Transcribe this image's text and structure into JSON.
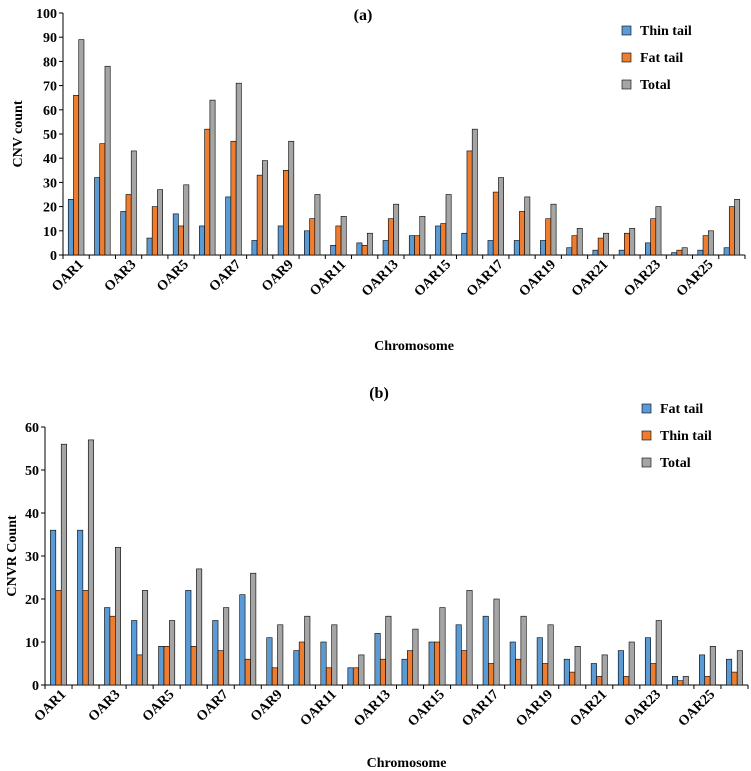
{
  "chart_data": [
    {
      "type": "bar",
      "title": "(a)",
      "xlabel": "Chromosome",
      "ylabel": "CNV  count",
      "ylim": [
        0,
        100
      ],
      "yticks": [
        "0",
        "10",
        "20",
        "30",
        "40",
        "50",
        "60",
        "70",
        "80",
        "90",
        "100"
      ],
      "categories": [
        "OAR1",
        "OAR2",
        "OAR3",
        "OAR4",
        "OAR5",
        "OAR6",
        "OAR7",
        "OAR8",
        "OAR9",
        "OAR10",
        "OAR11",
        "OAR12",
        "OAR13",
        "OAR14",
        "OAR15",
        "OAR16",
        "OAR17",
        "OAR18",
        "OAR19",
        "OAR20",
        "OAR21",
        "OAR22",
        "OAR23",
        "OAR24",
        "OAR25",
        "OAR26"
      ],
      "category_labels_shown": [
        "OAR1",
        "",
        "OAR3",
        "",
        "OAR5",
        "",
        "OAR7",
        "",
        "OAR9",
        "",
        "OAR11",
        "",
        "OAR13",
        "",
        "OAR15",
        "",
        "OAR17",
        "",
        "OAR19",
        "",
        "OAR21",
        "",
        "OAR23",
        "",
        "OAR25",
        ""
      ],
      "legend_position": "top-right",
      "series": [
        {
          "name": "Thin tail",
          "color": "#5b9bd5",
          "values": [
            23,
            32,
            18,
            7,
            17,
            12,
            24,
            6,
            12,
            10,
            4,
            5,
            6,
            8,
            12,
            9,
            6,
            6,
            6,
            3,
            2,
            2,
            5,
            1,
            2,
            3
          ]
        },
        {
          "name": "Fat tail",
          "color": "#ed7d31",
          "values": [
            66,
            46,
            25,
            20,
            12,
            52,
            47,
            33,
            35,
            15,
            12,
            4,
            15,
            8,
            13,
            43,
            26,
            18,
            15,
            8,
            7,
            9,
            15,
            2,
            8,
            20
          ]
        },
        {
          "name": "Total",
          "color": "#a5a5a5",
          "values": [
            89,
            78,
            43,
            27,
            29,
            64,
            71,
            39,
            47,
            25,
            16,
            9,
            21,
            16,
            25,
            52,
            32,
            24,
            21,
            11,
            9,
            11,
            20,
            3,
            10,
            23
          ]
        }
      ]
    },
    {
      "type": "bar",
      "title": "(b)",
      "xlabel": "Chromosome",
      "ylabel": "CNVR  Count",
      "ylim": [
        0,
        60
      ],
      "yticks": [
        "0",
        "10",
        "20",
        "30",
        "40",
        "50",
        "60"
      ],
      "categories": [
        "OAR1",
        "OAR2",
        "OAR3",
        "OAR4",
        "OAR5",
        "OAR6",
        "OAR7",
        "OAR8",
        "OAR9",
        "OAR10",
        "OAR11",
        "OAR12",
        "OAR13",
        "OAR14",
        "OAR15",
        "OAR16",
        "OAR17",
        "OAR18",
        "OAR19",
        "OAR20",
        "OAR21",
        "OAR22",
        "OAR23",
        "OAR24",
        "OAR25",
        "OAR26"
      ],
      "category_labels_shown": [
        "OAR1",
        "",
        "OAR3",
        "",
        "OAR5",
        "",
        "OAR7",
        "",
        "OAR9",
        "",
        "OAR11",
        "",
        "OAR13",
        "",
        "OAR15",
        "",
        "OAR17",
        "",
        "OAR19",
        "",
        "OAR21",
        "",
        "OAR23",
        "",
        "OAR25",
        ""
      ],
      "legend_position": "top-right",
      "series": [
        {
          "name": "Fat tail",
          "color": "#5b9bd5",
          "values": [
            36,
            36,
            18,
            15,
            9,
            22,
            15,
            21,
            11,
            8,
            10,
            4,
            12,
            6,
            10,
            14,
            16,
            10,
            11,
            6,
            5,
            8,
            11,
            2,
            7,
            6
          ]
        },
        {
          "name": "Thin tail",
          "color": "#ed7d31",
          "values": [
            22,
            22,
            16,
            7,
            9,
            9,
            8,
            6,
            4,
            10,
            4,
            4,
            6,
            8,
            10,
            8,
            5,
            6,
            5,
            3,
            2,
            2,
            5,
            1,
            2,
            3
          ]
        },
        {
          "name": "Total",
          "color": "#a5a5a5",
          "values": [
            56,
            57,
            32,
            22,
            15,
            27,
            18,
            26,
            14,
            16,
            14,
            7,
            16,
            13,
            18,
            22,
            20,
            16,
            14,
            9,
            7,
            10,
            15,
            2,
            9,
            8
          ]
        }
      ]
    }
  ]
}
